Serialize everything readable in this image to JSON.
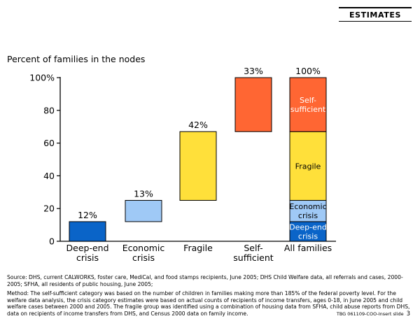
{
  "header": {
    "badge": "ESTIMATES"
  },
  "chart_data": {
    "type": "bar",
    "title": "Percent of families in the nodes",
    "ylim": [
      0,
      100
    ],
    "yticks": [
      "0",
      "20",
      "40",
      "60",
      "80",
      "100%"
    ],
    "categories": [
      "Deep-end crisis",
      "Economic crisis",
      "Fragile",
      "Self-sufficient",
      "All families"
    ],
    "category_labels": [
      [
        "Deep-end",
        "crisis"
      ],
      [
        "Economic",
        "crisis"
      ],
      [
        "Fragile"
      ],
      [
        "Self-",
        "sufficient"
      ],
      [
        "All families"
      ]
    ],
    "floating_bars": [
      {
        "category": "Deep-end crisis",
        "value": 12,
        "bottom": 0,
        "top": 12,
        "label": "12%",
        "color": "#0a64c8"
      },
      {
        "category": "Economic crisis",
        "value": 13,
        "bottom": 12,
        "top": 25,
        "label": "13%",
        "color": "#9fc9f6"
      },
      {
        "category": "Fragile",
        "value": 42,
        "bottom": 25,
        "top": 67,
        "label": "42%",
        "color": "#ffe03a"
      },
      {
        "category": "Self-sufficient",
        "value": 33,
        "bottom": 67,
        "top": 100,
        "label": "33%",
        "color": "#ff6633"
      }
    ],
    "stacked_bar": {
      "category": "All families",
      "label": "100%",
      "segments": [
        {
          "name": "Deep-end crisis",
          "lines": [
            "Deep-end",
            "crisis"
          ],
          "value": 12,
          "color": "#0a64c8",
          "text_color": "#ffffff"
        },
        {
          "name": "Economic crisis",
          "lines": [
            "Economic",
            "crisis"
          ],
          "value": 13,
          "color": "#9fc9f6",
          "text_color": "#000000"
        },
        {
          "name": "Fragile",
          "lines": [
            "Fragile"
          ],
          "value": 42,
          "color": "#ffe03a",
          "text_color": "#000000"
        },
        {
          "name": "Self-sufficient",
          "lines": [
            "Self-",
            "sufficient"
          ],
          "value": 33,
          "color": "#ff6633",
          "text_color": "#ffffff"
        }
      ]
    }
  },
  "notes": {
    "source": "Source: DHS, current CALWORKS, foster care, MediCal, and food stamps recipients, June 2005; DHS Child Welfare data, all referrals and cases, 2000-2005; SFHA, all residents of public housing, June 2005;",
    "method": "Method: The self-sufficient category was based on the number of children in families making more than 185% of the federal poverty level. For the welfare data analysis, the crisis category estimates were based on actual counts of recipients of income transfers, ages 0-18, in June 2005 and child welfare cases between 2000 and 2005. The fragile group was identified using a combination of housing data from SFHA, child abuse reports from DHS, data on recipients of income transfers from DHS, and Census 2000 data on family income."
  },
  "footer": {
    "code": "TBG  061109-COO-Insert slide",
    "page": "3"
  }
}
